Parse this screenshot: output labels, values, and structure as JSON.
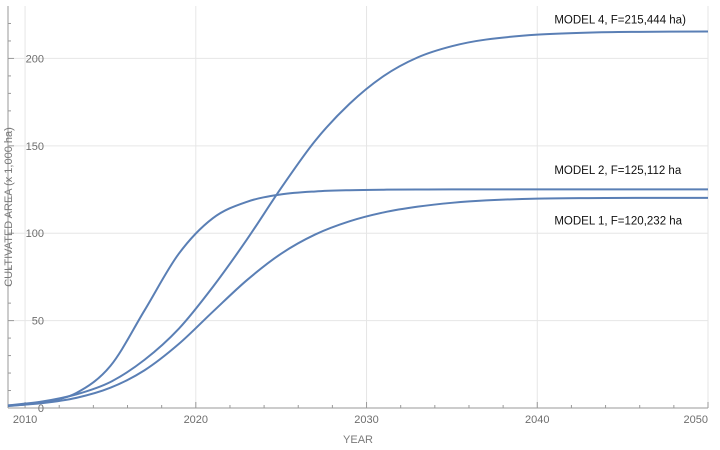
{
  "chart_data": {
    "type": "line",
    "title": "",
    "xlabel": "YEAR",
    "ylabel": "CULTIVATED AREA (x 1,000 ha)",
    "xlim": [
      2009,
      2050
    ],
    "ylim": [
      0,
      230
    ],
    "xticks": [
      2010,
      2020,
      2030,
      2040,
      2050
    ],
    "yticks": [
      0,
      50,
      100,
      150,
      200
    ],
    "grid": true,
    "line_color": "#5a7fb5",
    "grid_color": "#e6e6e6",
    "axis_color": "#9a9a9a",
    "x": [
      2009,
      2011,
      2013,
      2015,
      2017,
      2019,
      2021,
      2023,
      2025,
      2027,
      2029,
      2031,
      2033,
      2035,
      2037,
      2040,
      2043,
      2046,
      2050
    ],
    "series": [
      {
        "name": "MODEL 1, F=120,232 ha",
        "values": [
          1.3,
          2.8,
          5.8,
          11.6,
          21.6,
          36.6,
          55.1,
          73.2,
          88.3,
          99.3,
          106.8,
          111.9,
          115.2,
          117.4,
          118.8,
          119.8,
          120.1,
          120.2,
          120.2
        ]
      },
      {
        "name": "MODEL 2, F=125,112 ha",
        "values": [
          1.1,
          3.3,
          8.6,
          24.1,
          55.9,
          88.2,
          108.6,
          118.0,
          122.2,
          123.9,
          124.6,
          124.9,
          125.0,
          125.1,
          125.1,
          125.1,
          125.1,
          125.1,
          125.1
        ]
      },
      {
        "name": "MODEL 4, F=215,444 ha)",
        "values": [
          1.5,
          3.7,
          7.8,
          14.9,
          27.6,
          45.3,
          69.3,
          96.5,
          125.9,
          153.0,
          174.0,
          189.9,
          200.6,
          207.0,
          210.8,
          213.6,
          214.8,
          215.2,
          215.4
        ]
      }
    ],
    "annotations": [
      {
        "text": "MODEL 4, F=215,444 ha)",
        "x": 2041,
        "y": 220
      },
      {
        "text": "MODEL 2, F=125,112 ha",
        "x": 2041,
        "y": 134
      },
      {
        "text": "MODEL 1, F=120,232 ha",
        "x": 2041,
        "y": 105
      }
    ]
  }
}
